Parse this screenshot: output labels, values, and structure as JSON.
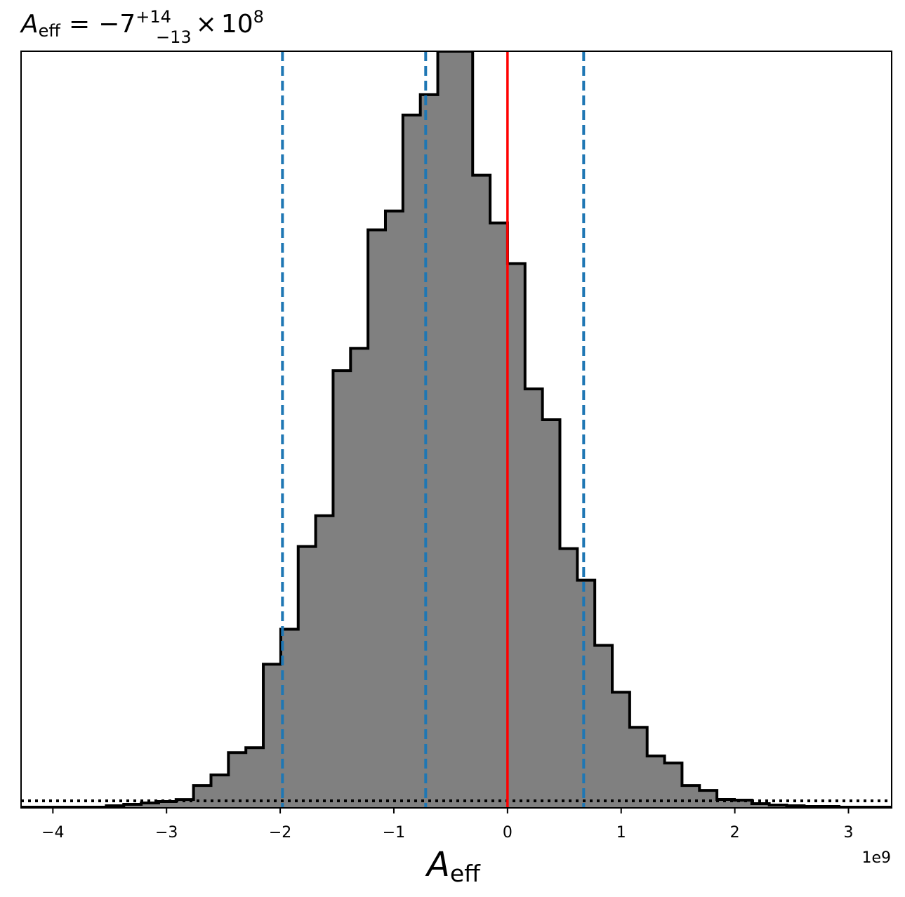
{
  "chart_data": {
    "type": "bar",
    "title": {
      "lhs_base": "A",
      "lhs_sub": "eff",
      "equals": "=",
      "value": "−7",
      "sup": "+14",
      "sub": "−13",
      "times": "×",
      "base": "10",
      "exp": "8"
    },
    "xlabel": {
      "base": "A",
      "sub": "eff"
    },
    "offset_label": "1e9",
    "xlim": [
      -4.28,
      3.38
    ],
    "ylim": [
      0,
      1.0
    ],
    "x_scale": 1000000000.0,
    "xticks": [
      {
        "value": -4,
        "label": "−4"
      },
      {
        "value": -3,
        "label": "−3"
      },
      {
        "value": -2,
        "label": "−2"
      },
      {
        "value": -1,
        "label": "−1"
      },
      {
        "value": 0,
        "label": "0"
      },
      {
        "value": 1,
        "label": "1"
      },
      {
        "value": 2,
        "label": "2"
      },
      {
        "value": 3,
        "label": "3"
      }
    ],
    "bins": {
      "start": -3.53,
      "width": 0.1535,
      "heights": [
        0.0028,
        0.0046,
        0.0065,
        0.0083,
        0.011,
        0.0296,
        0.0435,
        0.0731,
        0.0796,
        0.1898,
        0.2361,
        0.3454,
        0.3861,
        0.5778,
        0.6074,
        0.7639,
        0.7889,
        0.9157,
        0.9426,
        1.0,
        1.0,
        0.8361,
        0.7731,
        0.7194,
        0.5537,
        0.513,
        0.3426,
        0.3009,
        0.2148,
        0.1528,
        0.1065,
        0.0685,
        0.0593,
        0.0296,
        0.0231,
        0.0111,
        0.0102,
        0.0056,
        0.0037,
        0.0028,
        0.0019,
        0.0019,
        0.0009,
        0.0009,
        0.0009
      ]
    },
    "fill_color": "#808080",
    "edge_color": "#000000",
    "quantile_lines": [
      -1.98,
      -0.72,
      0.67
    ],
    "quantile_color": "#1f77b4",
    "reference_line": 0,
    "reference_color": "#ff0000",
    "baseline_level": 0.0093,
    "grid": false
  }
}
